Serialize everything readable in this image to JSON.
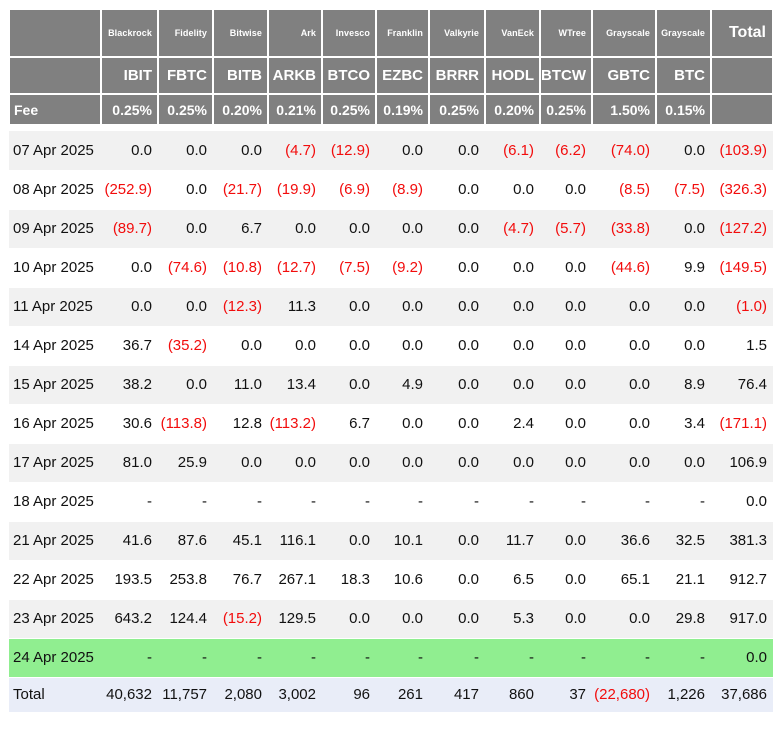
{
  "chart_data": {
    "type": "table",
    "title": "Bitcoin ETF daily flow table",
    "corner_label": "",
    "total_header": "Total",
    "fee_label": "Fee",
    "providers": [
      "Blackrock",
      "Fidelity",
      "Bitwise",
      "Ark",
      "Invesco",
      "Franklin",
      "Valkyrie",
      "VanEck",
      "WTree",
      "Grayscale",
      "Grayscale"
    ],
    "tickers": [
      "IBIT",
      "FBTC",
      "BITB",
      "ARKB",
      "BTCO",
      "EZBC",
      "BRRR",
      "HODL",
      "BTCW",
      "GBTC",
      "BTC"
    ],
    "fees": [
      "0.25%",
      "0.25%",
      "0.20%",
      "0.21%",
      "0.25%",
      "0.19%",
      "0.25%",
      "0.20%",
      "0.25%",
      "1.50%",
      "0.15%"
    ],
    "rows": [
      {
        "date": "07 Apr 2025",
        "values": [
          "0.0",
          "0.0",
          "0.0",
          "(4.7)",
          "(12.9)",
          "0.0",
          "0.0",
          "(6.1)",
          "(6.2)",
          "(74.0)",
          "0.0"
        ],
        "total": "(103.9)"
      },
      {
        "date": "08 Apr 2025",
        "values": [
          "(252.9)",
          "0.0",
          "(21.7)",
          "(19.9)",
          "(6.9)",
          "(8.9)",
          "0.0",
          "0.0",
          "0.0",
          "(8.5)",
          "(7.5)"
        ],
        "total": "(326.3)"
      },
      {
        "date": "09 Apr 2025",
        "values": [
          "(89.7)",
          "0.0",
          "6.7",
          "0.0",
          "0.0",
          "0.0",
          "0.0",
          "(4.7)",
          "(5.7)",
          "(33.8)",
          "0.0"
        ],
        "total": "(127.2)"
      },
      {
        "date": "10 Apr 2025",
        "values": [
          "0.0",
          "(74.6)",
          "(10.8)",
          "(12.7)",
          "(7.5)",
          "(9.2)",
          "0.0",
          "0.0",
          "0.0",
          "(44.6)",
          "9.9"
        ],
        "total": "(149.5)"
      },
      {
        "date": "11 Apr 2025",
        "values": [
          "0.0",
          "0.0",
          "(12.3)",
          "11.3",
          "0.0",
          "0.0",
          "0.0",
          "0.0",
          "0.0",
          "0.0",
          "0.0"
        ],
        "total": "(1.0)"
      },
      {
        "date": "14 Apr 2025",
        "values": [
          "36.7",
          "(35.2)",
          "0.0",
          "0.0",
          "0.0",
          "0.0",
          "0.0",
          "0.0",
          "0.0",
          "0.0",
          "0.0"
        ],
        "total": "1.5"
      },
      {
        "date": "15 Apr 2025",
        "values": [
          "38.2",
          "0.0",
          "11.0",
          "13.4",
          "0.0",
          "4.9",
          "0.0",
          "0.0",
          "0.0",
          "0.0",
          "8.9"
        ],
        "total": "76.4"
      },
      {
        "date": "16 Apr 2025",
        "values": [
          "30.6",
          "(113.8)",
          "12.8",
          "(113.2)",
          "6.7",
          "0.0",
          "0.0",
          "2.4",
          "0.0",
          "0.0",
          "3.4"
        ],
        "total": "(171.1)"
      },
      {
        "date": "17 Apr 2025",
        "values": [
          "81.0",
          "25.9",
          "0.0",
          "0.0",
          "0.0",
          "0.0",
          "0.0",
          "0.0",
          "0.0",
          "0.0",
          "0.0"
        ],
        "total": "106.9"
      },
      {
        "date": "18 Apr 2025",
        "values": [
          "-",
          "-",
          "-",
          "-",
          "-",
          "-",
          "-",
          "-",
          "-",
          "-",
          "-"
        ],
        "total": "0.0"
      },
      {
        "date": "21 Apr 2025",
        "values": [
          "41.6",
          "87.6",
          "45.1",
          "116.1",
          "0.0",
          "10.1",
          "0.0",
          "11.7",
          "0.0",
          "36.6",
          "32.5"
        ],
        "total": "381.3"
      },
      {
        "date": "22 Apr 2025",
        "values": [
          "193.5",
          "253.8",
          "76.7",
          "267.1",
          "18.3",
          "10.6",
          "0.0",
          "6.5",
          "0.0",
          "65.1",
          "21.1"
        ],
        "total": "912.7"
      },
      {
        "date": "23 Apr 2025",
        "values": [
          "643.2",
          "124.4",
          "(15.2)",
          "129.5",
          "0.0",
          "0.0",
          "0.0",
          "5.3",
          "0.0",
          "0.0",
          "29.8"
        ],
        "total": "917.0"
      },
      {
        "date": "24 Apr 2025",
        "values": [
          "-",
          "-",
          "-",
          "-",
          "-",
          "-",
          "-",
          "-",
          "-",
          "-",
          "-"
        ],
        "total": "0.0",
        "highlight": "green"
      }
    ],
    "total_row": {
      "label": "Total",
      "values": [
        "40,632",
        "11,757",
        "2,080",
        "3,002",
        "96",
        "261",
        "417",
        "860",
        "37",
        "(22,680)",
        "1,226"
      ],
      "total": "37,686"
    }
  },
  "colors": {
    "header_bg": "#808080",
    "row_alt_bg": "#f1f1f1",
    "row_bg": "#ffffff",
    "highlight_green": "#90ee90",
    "total_row_bg": "#e9edf8",
    "negative": "#f20c0c",
    "text": "#111111"
  }
}
